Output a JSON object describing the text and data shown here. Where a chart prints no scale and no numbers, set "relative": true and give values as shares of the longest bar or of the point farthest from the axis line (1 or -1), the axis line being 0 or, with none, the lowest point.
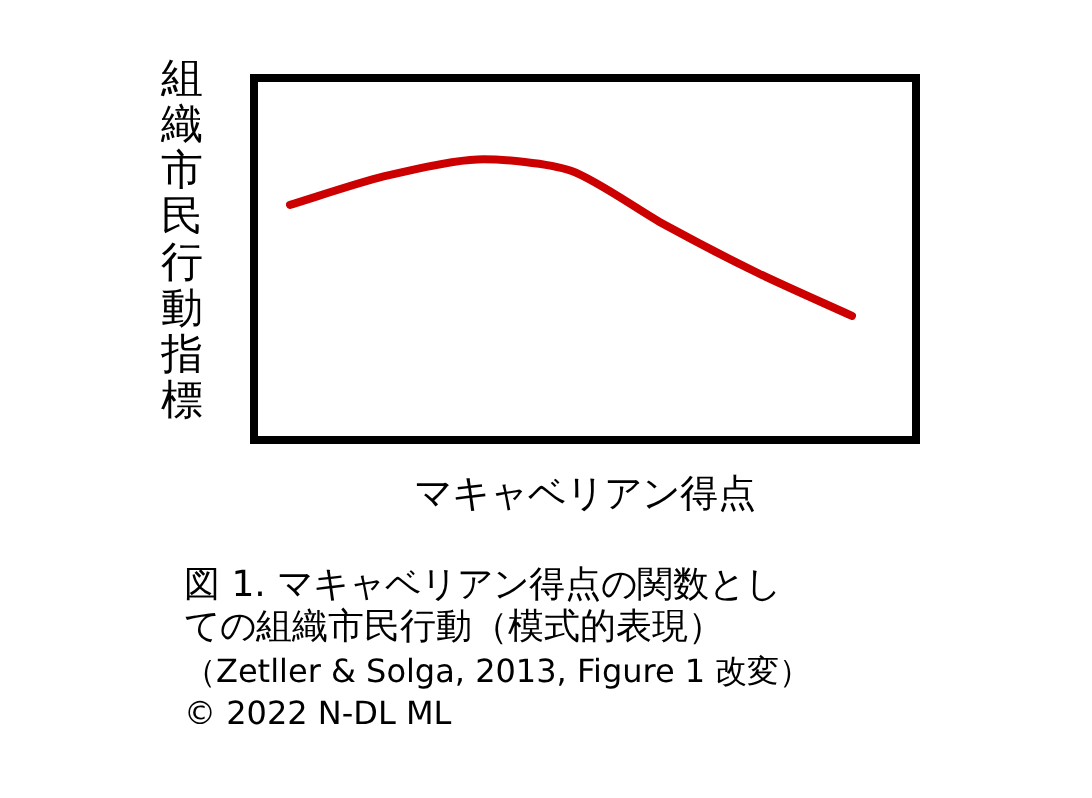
{
  "chart_data": {
    "type": "line",
    "title": "図 1. マキャベリアン得点の関数としての組織市民行動（模式的表現）",
    "xlabel": "マキャベリアン得点",
    "ylabel": "組織市民行動指標",
    "annotations": [
      "（Zetller & Solga, 2013, Figure 1 改変）",
      "© 2022 N-DL ML"
    ],
    "categories": [
      null,
      null,
      null,
      null,
      null,
      null,
      null
    ],
    "series": [
      {
        "color": "#cc0000",
        "values": [
          0.84,
          0.94,
          1,
          0.96,
          0.77,
          0.6,
          0.45
        ]
      }
    ],
    "relative": true,
    "grid": false,
    "legend": false,
    "marker": "none"
  }
}
